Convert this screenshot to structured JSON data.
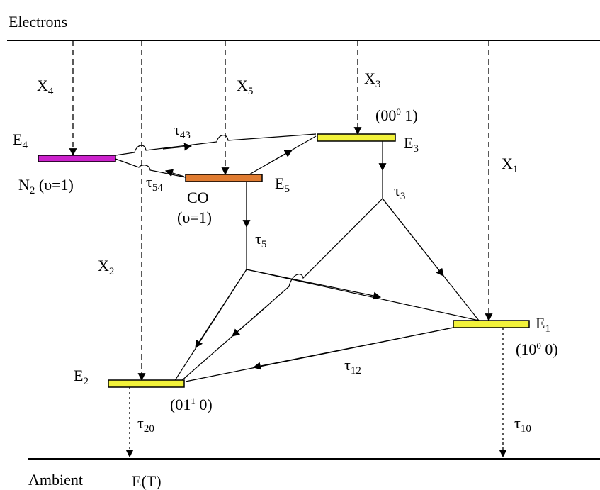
{
  "header": {
    "label": "Electrons"
  },
  "footer": {
    "label": "Ambient",
    "energy": "E(T)"
  },
  "levels": {
    "e4": {
      "name": "E",
      "sub": "4",
      "species": "N",
      "species_sub": "2",
      "state": " (υ=1)",
      "color": "#cc22cc"
    },
    "e5": {
      "name": "E",
      "sub": "5",
      "species": "CO",
      "state": "(υ=1)",
      "color": "#e07b30"
    },
    "e3": {
      "name": "E",
      "sub": "3",
      "state_a": "(00",
      "state_sup": "0",
      "state_b": " 1)",
      "color": "#f2f23a"
    },
    "e1": {
      "name": "E",
      "sub": "1",
      "state_a": "(10",
      "state_sup": "0",
      "state_b": " 0)",
      "color": "#f2f23a"
    },
    "e2": {
      "name": "E",
      "sub": "2",
      "state_a": "(01",
      "state_sup": "1",
      "state_b": " 0)",
      "color": "#f2f23a"
    }
  },
  "excitations": {
    "x1": {
      "name": "X",
      "sub": "1"
    },
    "x2": {
      "name": "X",
      "sub": "2"
    },
    "x3": {
      "name": "X",
      "sub": "3"
    },
    "x4": {
      "name": "X",
      "sub": "4"
    },
    "x5": {
      "name": "X",
      "sub": "5"
    }
  },
  "relaxations": {
    "t43": {
      "name": "τ",
      "sub": "43"
    },
    "t54": {
      "name": "τ",
      "sub": "54"
    },
    "t3": {
      "name": "τ",
      "sub": "3"
    },
    "t5": {
      "name": "τ",
      "sub": "5"
    },
    "t12": {
      "name": "τ",
      "sub": "12"
    },
    "t10": {
      "name": "τ",
      "sub": "10"
    },
    "t20": {
      "name": "τ",
      "sub": "20"
    }
  }
}
